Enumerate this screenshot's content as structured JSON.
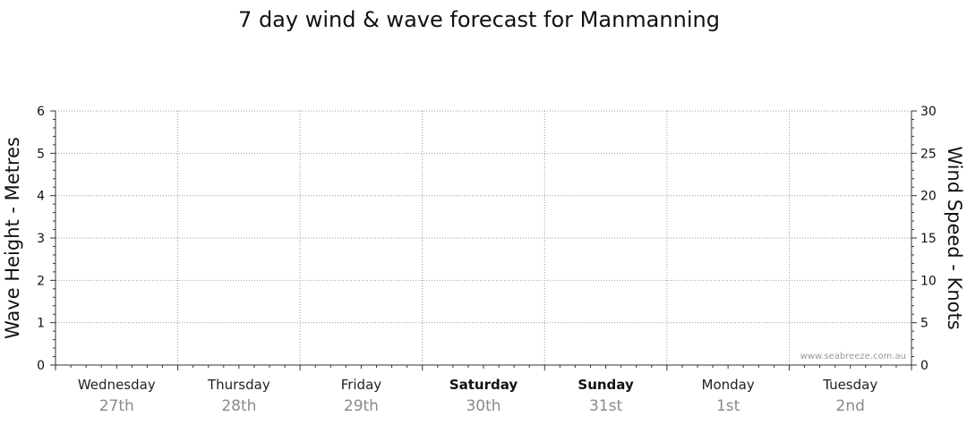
{
  "chart_data": {
    "type": "line",
    "title": "7 day wind & wave forecast for Manmanning",
    "ylabel": "Wave Height - Metres",
    "y2label": "Wind Speed - Knots",
    "ylim": [
      0,
      6
    ],
    "y2lim": [
      0,
      30
    ],
    "yticks": [
      "0",
      "1",
      "2",
      "3",
      "4",
      "5",
      "6"
    ],
    "y2ticks": [
      "0",
      "5",
      "10",
      "15",
      "20",
      "25",
      "30"
    ],
    "grid": true,
    "days": [
      {
        "name": "Wednesday",
        "date": "27th",
        "weekend": false
      },
      {
        "name": "Thursday",
        "date": "28th",
        "weekend": false
      },
      {
        "name": "Friday",
        "date": "29th",
        "weekend": false
      },
      {
        "name": "Saturday",
        "date": "30th",
        "weekend": true
      },
      {
        "name": "Sunday",
        "date": "31st",
        "weekend": true
      },
      {
        "name": "Monday",
        "date": "1st",
        "weekend": false
      },
      {
        "name": "Tuesday",
        "date": "2nd",
        "weekend": false
      }
    ],
    "series": []
  },
  "watermark": "www.seabreeze.com.au",
  "colors": {
    "grid": "#9a9a9a",
    "axis": "#333333",
    "date_text": "#8a8a8a"
  }
}
